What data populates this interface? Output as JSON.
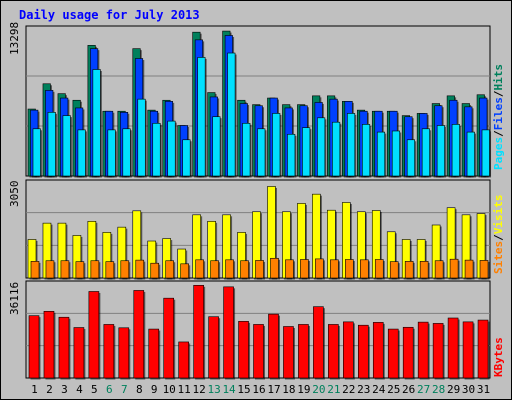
{
  "colors": {
    "background": "#c0c0c0",
    "panel": "#c0c0c0",
    "grid": "#808080",
    "title": "#0000ff",
    "hits": "#00805c",
    "files": "#0040ff",
    "pages": "#00e0ff",
    "visits": "#ffff00",
    "sites": "#ff8000",
    "kbytes": "#ff0000",
    "weekend_label": "#00805c",
    "weekday_label": "#000000"
  },
  "chart_data": [
    {
      "type": "bar",
      "title": "Daily usage for July 2013",
      "panel": "top",
      "ymax_label": "13298",
      "ylim": [
        0,
        13298
      ],
      "categories": [
        "1",
        "2",
        "3",
        "4",
        "5",
        "6",
        "7",
        "8",
        "9",
        "10",
        "11",
        "12",
        "13",
        "14",
        "15",
        "16",
        "17",
        "18",
        "19",
        "20",
        "21",
        "22",
        "23",
        "24",
        "25",
        "26",
        "27",
        "28",
        "29",
        "30",
        "31"
      ],
      "legend": {
        "pages": "Pages",
        "files": "Files",
        "hits": "Hits",
        "sep": "/"
      },
      "series": [
        {
          "name": "Hits",
          "color_key": "hits",
          "values": [
            6100,
            8400,
            7500,
            6900,
            11900,
            5900,
            5900,
            11600,
            6000,
            6900,
            4600,
            13100,
            7600,
            13200,
            6900,
            6500,
            7100,
            6500,
            6500,
            7300,
            7300,
            6800,
            6000,
            5900,
            5900,
            5500,
            5700,
            6600,
            7300,
            6600,
            7400
          ]
        },
        {
          "name": "Files",
          "color_key": "files",
          "values": [
            6000,
            7800,
            7100,
            6200,
            11600,
            5900,
            5800,
            10700,
            5900,
            6800,
            4600,
            12400,
            7200,
            12800,
            6600,
            6400,
            7100,
            6200,
            6400,
            6700,
            7000,
            6800,
            5900,
            5900,
            5900,
            5400,
            5700,
            6400,
            6900,
            6300,
            7100
          ]
        },
        {
          "name": "Pages",
          "color_key": "pages",
          "values": [
            4300,
            5800,
            5500,
            4200,
            9700,
            4200,
            4300,
            7000,
            4800,
            5000,
            3300,
            10800,
            5400,
            11200,
            4800,
            4300,
            5700,
            3800,
            4400,
            5300,
            4900,
            5700,
            4700,
            4000,
            4100,
            3300,
            4300,
            4600,
            4700,
            4000,
            4200
          ]
        }
      ]
    },
    {
      "type": "bar",
      "panel": "middle",
      "ymax_label": "3050",
      "ylim": [
        0,
        3050
      ],
      "categories": [
        "1",
        "2",
        "3",
        "4",
        "5",
        "6",
        "7",
        "8",
        "9",
        "10",
        "11",
        "12",
        "13",
        "14",
        "15",
        "16",
        "17",
        "18",
        "19",
        "20",
        "21",
        "22",
        "23",
        "24",
        "25",
        "26",
        "27",
        "28",
        "29",
        "30",
        "31"
      ],
      "legend": {
        "sites": "Sites",
        "visits": "Visits",
        "sep": "/"
      },
      "series": [
        {
          "name": "Visits",
          "color_key": "visits",
          "values": [
            1250,
            1780,
            1780,
            1380,
            1840,
            1480,
            1650,
            2180,
            1200,
            1280,
            940,
            2050,
            1840,
            2050,
            1480,
            2150,
            2970,
            2150,
            2420,
            2720,
            2200,
            2450,
            2150,
            2190,
            1500,
            1250,
            1250,
            1720,
            2280,
            2050,
            2090
          ]
        },
        {
          "name": "Sites",
          "color_key": "sites",
          "values": [
            540,
            560,
            560,
            530,
            560,
            530,
            560,
            580,
            480,
            560,
            460,
            590,
            560,
            590,
            560,
            570,
            640,
            590,
            600,
            620,
            590,
            600,
            590,
            600,
            530,
            540,
            540,
            560,
            610,
            580,
            570
          ]
        }
      ]
    },
    {
      "type": "bar",
      "panel": "bottom",
      "ymax_label": "36116",
      "ylim": [
        0,
        36116
      ],
      "categories": [
        "1",
        "2",
        "3",
        "4",
        "5",
        "6",
        "7",
        "8",
        "9",
        "10",
        "11",
        "12",
        "13",
        "14",
        "15",
        "16",
        "17",
        "18",
        "19",
        "20",
        "21",
        "22",
        "23",
        "24",
        "25",
        "26",
        "27",
        "28",
        "29",
        "30",
        "31"
      ],
      "legend": {
        "kbytes": "KBytes"
      },
      "series": [
        {
          "name": "KBytes",
          "color_key": "kbytes",
          "values": [
            24200,
            25900,
            23600,
            19600,
            33600,
            20800,
            19500,
            34000,
            19000,
            31000,
            14000,
            36000,
            23800,
            35400,
            22000,
            20800,
            24800,
            20000,
            20800,
            27700,
            20800,
            21800,
            20500,
            21600,
            19000,
            19700,
            21700,
            21200,
            23300,
            21800,
            22500
          ]
        }
      ]
    }
  ]
}
